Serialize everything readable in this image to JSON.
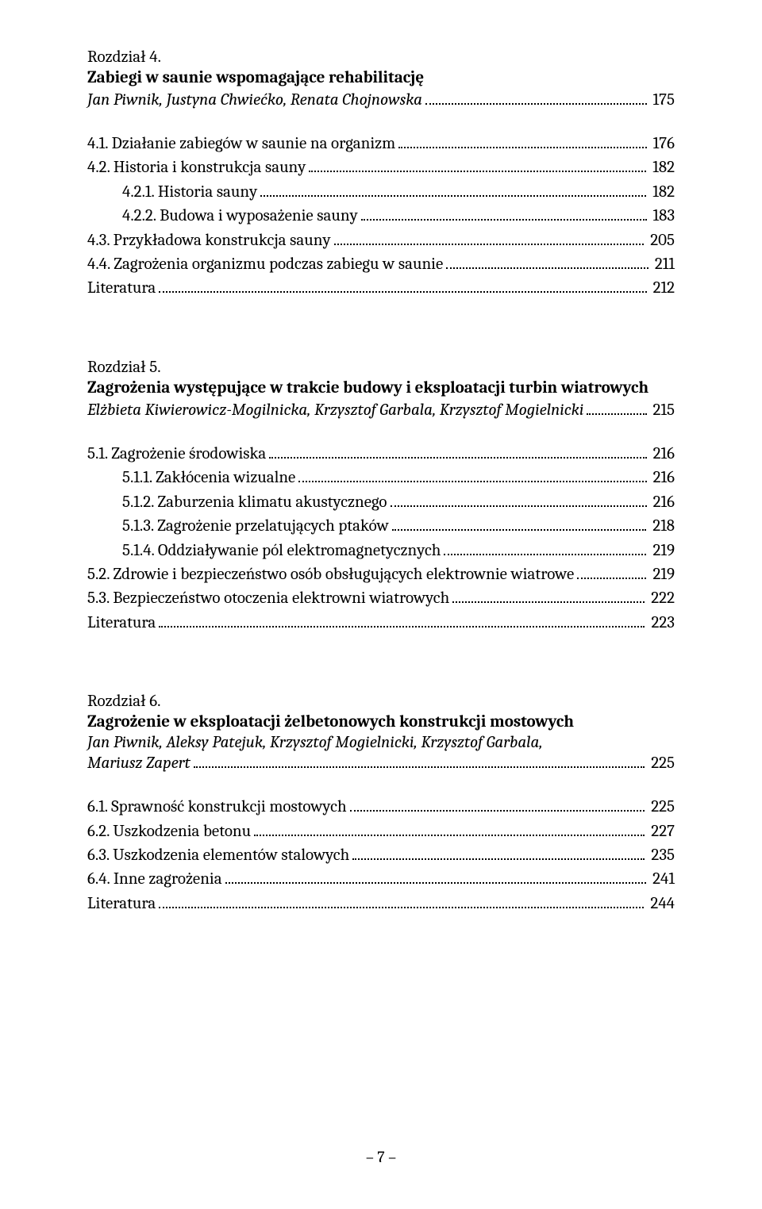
{
  "pageNumber": "– 7 –",
  "chapters": [
    {
      "label": "Rozdział 4.",
      "title": "Zabiegi w saunie wspomagające rehabilitację",
      "authors": "Jan Piwnik, Justyna Chwiećko, Renata Chojnowska",
      "authorsPage": "175",
      "entries": [
        {
          "indent": 0,
          "text": "4.1.  Działanie zabiegów w saunie na organizm",
          "page": "176"
        },
        {
          "indent": 0,
          "text": "4.2.  Historia i konstrukcja sauny",
          "page": "182"
        },
        {
          "indent": 1,
          "text": "4.2.1. Historia sauny",
          "page": "182"
        },
        {
          "indent": 1,
          "text": "4.2.2. Budowa i wyposażenie sauny",
          "page": "183"
        },
        {
          "indent": 0,
          "text": "4.3.  Przykładowa konstrukcja sauny",
          "page": "205"
        },
        {
          "indent": 0,
          "text": "4.4.  Zagrożenia organizmu podczas zabiegu w saunie",
          "page": "211"
        },
        {
          "indent": 0,
          "text": "Literatura",
          "page": "212"
        }
      ]
    },
    {
      "label": "Rozdział 5.",
      "title": "Zagrożenia występujące w trakcie budowy i eksploatacji turbin wiatrowych",
      "authors": "Elżbieta Kiwierowicz-Mogilnicka, Krzysztof Garbala, Krzysztof Mogielnicki",
      "authorsPage": "215",
      "entries": [
        {
          "indent": 0,
          "text": "5.1.  Zagrożenie środowiska",
          "page": "216"
        },
        {
          "indent": 1,
          "text": "5.1.1. Zakłócenia wizualne",
          "page": "216"
        },
        {
          "indent": 1,
          "text": "5.1.2. Zaburzenia klimatu akustycznego",
          "page": "216"
        },
        {
          "indent": 1,
          "text": "5.1.3. Zagrożenie przelatujących ptaków",
          "page": "218"
        },
        {
          "indent": 1,
          "text": "5.1.4. Oddziaływanie pól elektromagnetycznych",
          "page": "219"
        },
        {
          "indent": 0,
          "text": "5.2.  Zdrowie i bezpieczeństwo osób obsługujących elektrownie wiatrowe",
          "page": "219"
        },
        {
          "indent": 0,
          "text": "5.3.  Bezpieczeństwo otoczenia elektrowni wiatrowych",
          "page": "222"
        },
        {
          "indent": 0,
          "text": "Literatura",
          "page": "223"
        }
      ]
    },
    {
      "label": "Rozdział 6.",
      "title": "Zagrożenie w eksploatacji żelbetonowych konstrukcji mostowych",
      "authorsLine1": "Jan Piwnik, Aleksy Patejuk, Krzysztof Mogielnicki, Krzysztof Garbala,",
      "authorsLine2": "Mariusz Zapert",
      "authorsPage": "225",
      "entries": [
        {
          "indent": 0,
          "text": "6.1.  Sprawność konstrukcji mostowych",
          "page": "225"
        },
        {
          "indent": 0,
          "text": "6.2.  Uszkodzenia betonu",
          "page": "227"
        },
        {
          "indent": 0,
          "text": "6.3.  Uszkodzenia elementów stalowych",
          "page": "235"
        },
        {
          "indent": 0,
          "text": "6.4.  Inne zagrożenia",
          "page": "241"
        },
        {
          "indent": 0,
          "text": "Literatura",
          "page": "244"
        }
      ]
    }
  ]
}
